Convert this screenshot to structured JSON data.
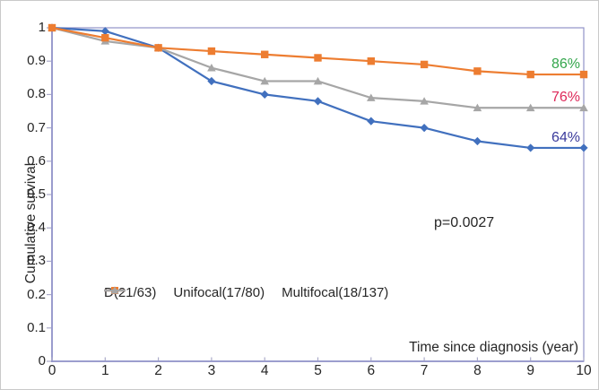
{
  "chart_data": {
    "type": "line",
    "title": "",
    "xlabel": "Time since diagnosis (year)",
    "ylabel": "Cumulative survival",
    "annotation": "p=0.0027",
    "x": [
      0,
      1,
      2,
      3,
      4,
      5,
      6,
      7,
      8,
      9,
      10
    ],
    "xlim": [
      0,
      10
    ],
    "ylim": [
      0,
      1
    ],
    "x_tick_labels": [
      "0",
      "1",
      "2",
      "3",
      "4",
      "5",
      "6",
      "7",
      "8",
      "9",
      "10"
    ],
    "y_tick_labels": [
      "0",
      "0.1",
      "0.2",
      "0.3",
      "0.4",
      "0.5",
      "0.6",
      "0.7",
      "0.8",
      "0.9",
      "1"
    ],
    "grid": false,
    "legend_position": "inside-bottom-left",
    "series": [
      {
        "name": "D(21/63)",
        "color": "#4170BE",
        "marker": "diamond",
        "values": [
          1.0,
          0.99,
          0.94,
          0.84,
          0.8,
          0.78,
          0.72,
          0.7,
          0.66,
          0.64,
          0.64
        ],
        "end_label": "64%",
        "end_label_color": "#3A3A9C"
      },
      {
        "name": "Unifocal(17/80)",
        "color": "#ED7D31",
        "marker": "square",
        "values": [
          1.0,
          0.97,
          0.94,
          0.93,
          0.92,
          0.91,
          0.9,
          0.89,
          0.87,
          0.86,
          0.86
        ],
        "end_label": "86%",
        "end_label_color": "#33A64C"
      },
      {
        "name": "Multifocal(18/137)",
        "color": "#A6A6A6",
        "marker": "triangle",
        "values": [
          1.0,
          0.96,
          0.94,
          0.88,
          0.84,
          0.84,
          0.79,
          0.78,
          0.76,
          0.76,
          0.76
        ],
        "end_label": "76%",
        "end_label_color": "#DE2859"
      }
    ],
    "colors": {
      "axis_frame": "#9193C9",
      "tick": "#ABABC9",
      "text": "#262626",
      "figure_border": "#C9C9C9",
      "background": "#FFFFFF"
    }
  }
}
